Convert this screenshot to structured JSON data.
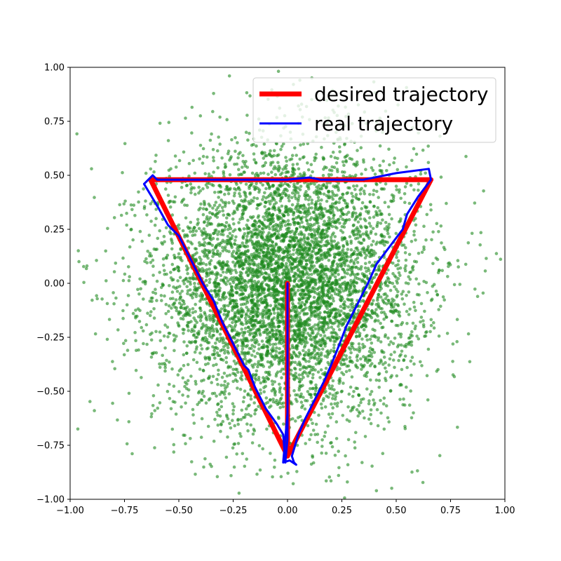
{
  "chart_data": {
    "type": "scatter",
    "title": "",
    "xlabel": "",
    "ylabel": "",
    "xlim": [
      -1.0,
      1.0
    ],
    "ylim": [
      -1.0,
      1.0
    ],
    "grid": false,
    "legend_position": "top-right",
    "x_ticks": [
      -1.0,
      -0.75,
      -0.5,
      -0.25,
      0.0,
      0.25,
      0.5,
      0.75,
      1.0
    ],
    "x_tick_labels": [
      "−1.00",
      "−0.75",
      "−0.50",
      "−0.25",
      "0.00",
      "0.25",
      "0.50",
      "0.75",
      "1.00"
    ],
    "y_ticks": [
      -1.0,
      -0.75,
      -0.5,
      -0.25,
      0.0,
      0.25,
      0.5,
      0.75,
      1.0
    ],
    "y_tick_labels": [
      "−1.00",
      "−0.75",
      "−0.50",
      "−0.25",
      "0.00",
      "0.25",
      "0.50",
      "0.75",
      "1.00"
    ],
    "scatter": {
      "color": "#1f8a1f",
      "center": [
        0.0,
        0.0
      ],
      "std": [
        0.3,
        0.32
      ],
      "count": 6000,
      "seed": 12345
    },
    "series": [
      {
        "name": "desired trajectory",
        "color": "#ff0000",
        "type": "line",
        "points": [
          [
            0.0,
            0.0
          ],
          [
            0.0,
            -0.8
          ],
          [
            0.66,
            0.48
          ],
          [
            -0.63,
            0.48
          ],
          [
            0.0,
            -0.8
          ]
        ]
      },
      {
        "name": "real trajectory",
        "color": "#0000ff",
        "type": "line",
        "points": [
          [
            0.0,
            0.0
          ],
          [
            0.0,
            -0.72
          ],
          [
            -0.01,
            -0.83
          ],
          [
            -0.02,
            -0.7
          ],
          [
            -0.05,
            -0.65
          ],
          [
            -0.1,
            -0.58
          ],
          [
            -0.15,
            -0.48
          ],
          [
            -0.18,
            -0.4
          ],
          [
            -0.2,
            -0.38
          ],
          [
            -0.25,
            -0.28
          ],
          [
            -0.3,
            -0.18
          ],
          [
            -0.34,
            -0.08
          ],
          [
            -0.39,
            0.0
          ],
          [
            -0.45,
            0.12
          ],
          [
            -0.5,
            0.22
          ],
          [
            -0.55,
            0.27
          ],
          [
            -0.6,
            0.36
          ],
          [
            -0.66,
            0.46
          ],
          [
            -0.62,
            0.5
          ],
          [
            -0.6,
            0.48
          ],
          [
            -0.3,
            0.48
          ],
          [
            0.0,
            0.48
          ],
          [
            0.1,
            0.49
          ],
          [
            0.15,
            0.48
          ],
          [
            0.35,
            0.48
          ],
          [
            0.5,
            0.51
          ],
          [
            0.65,
            0.53
          ],
          [
            0.66,
            0.48
          ],
          [
            0.6,
            0.4
          ],
          [
            0.55,
            0.32
          ],
          [
            0.53,
            0.25
          ],
          [
            0.47,
            0.17
          ],
          [
            0.41,
            0.09
          ],
          [
            0.37,
            0.0
          ],
          [
            0.33,
            -0.08
          ],
          [
            0.27,
            -0.2
          ],
          [
            0.24,
            -0.28
          ],
          [
            0.2,
            -0.38
          ],
          [
            0.17,
            -0.45
          ],
          [
            0.12,
            -0.55
          ],
          [
            0.08,
            -0.63
          ],
          [
            0.05,
            -0.7
          ],
          [
            0.02,
            -0.8
          ],
          [
            0.03,
            -0.83
          ],
          [
            0.04,
            -0.84
          ],
          [
            0.01,
            -0.82
          ],
          [
            -0.02,
            -0.83
          ],
          [
            0.0,
            -0.6
          ],
          [
            0.0,
            0.0
          ]
        ]
      }
    ],
    "legend": [
      {
        "label": "desired trajectory",
        "color": "#ff0000",
        "width": 7
      },
      {
        "label": "real trajectory",
        "color": "#0000ff",
        "width": 3
      }
    ]
  }
}
